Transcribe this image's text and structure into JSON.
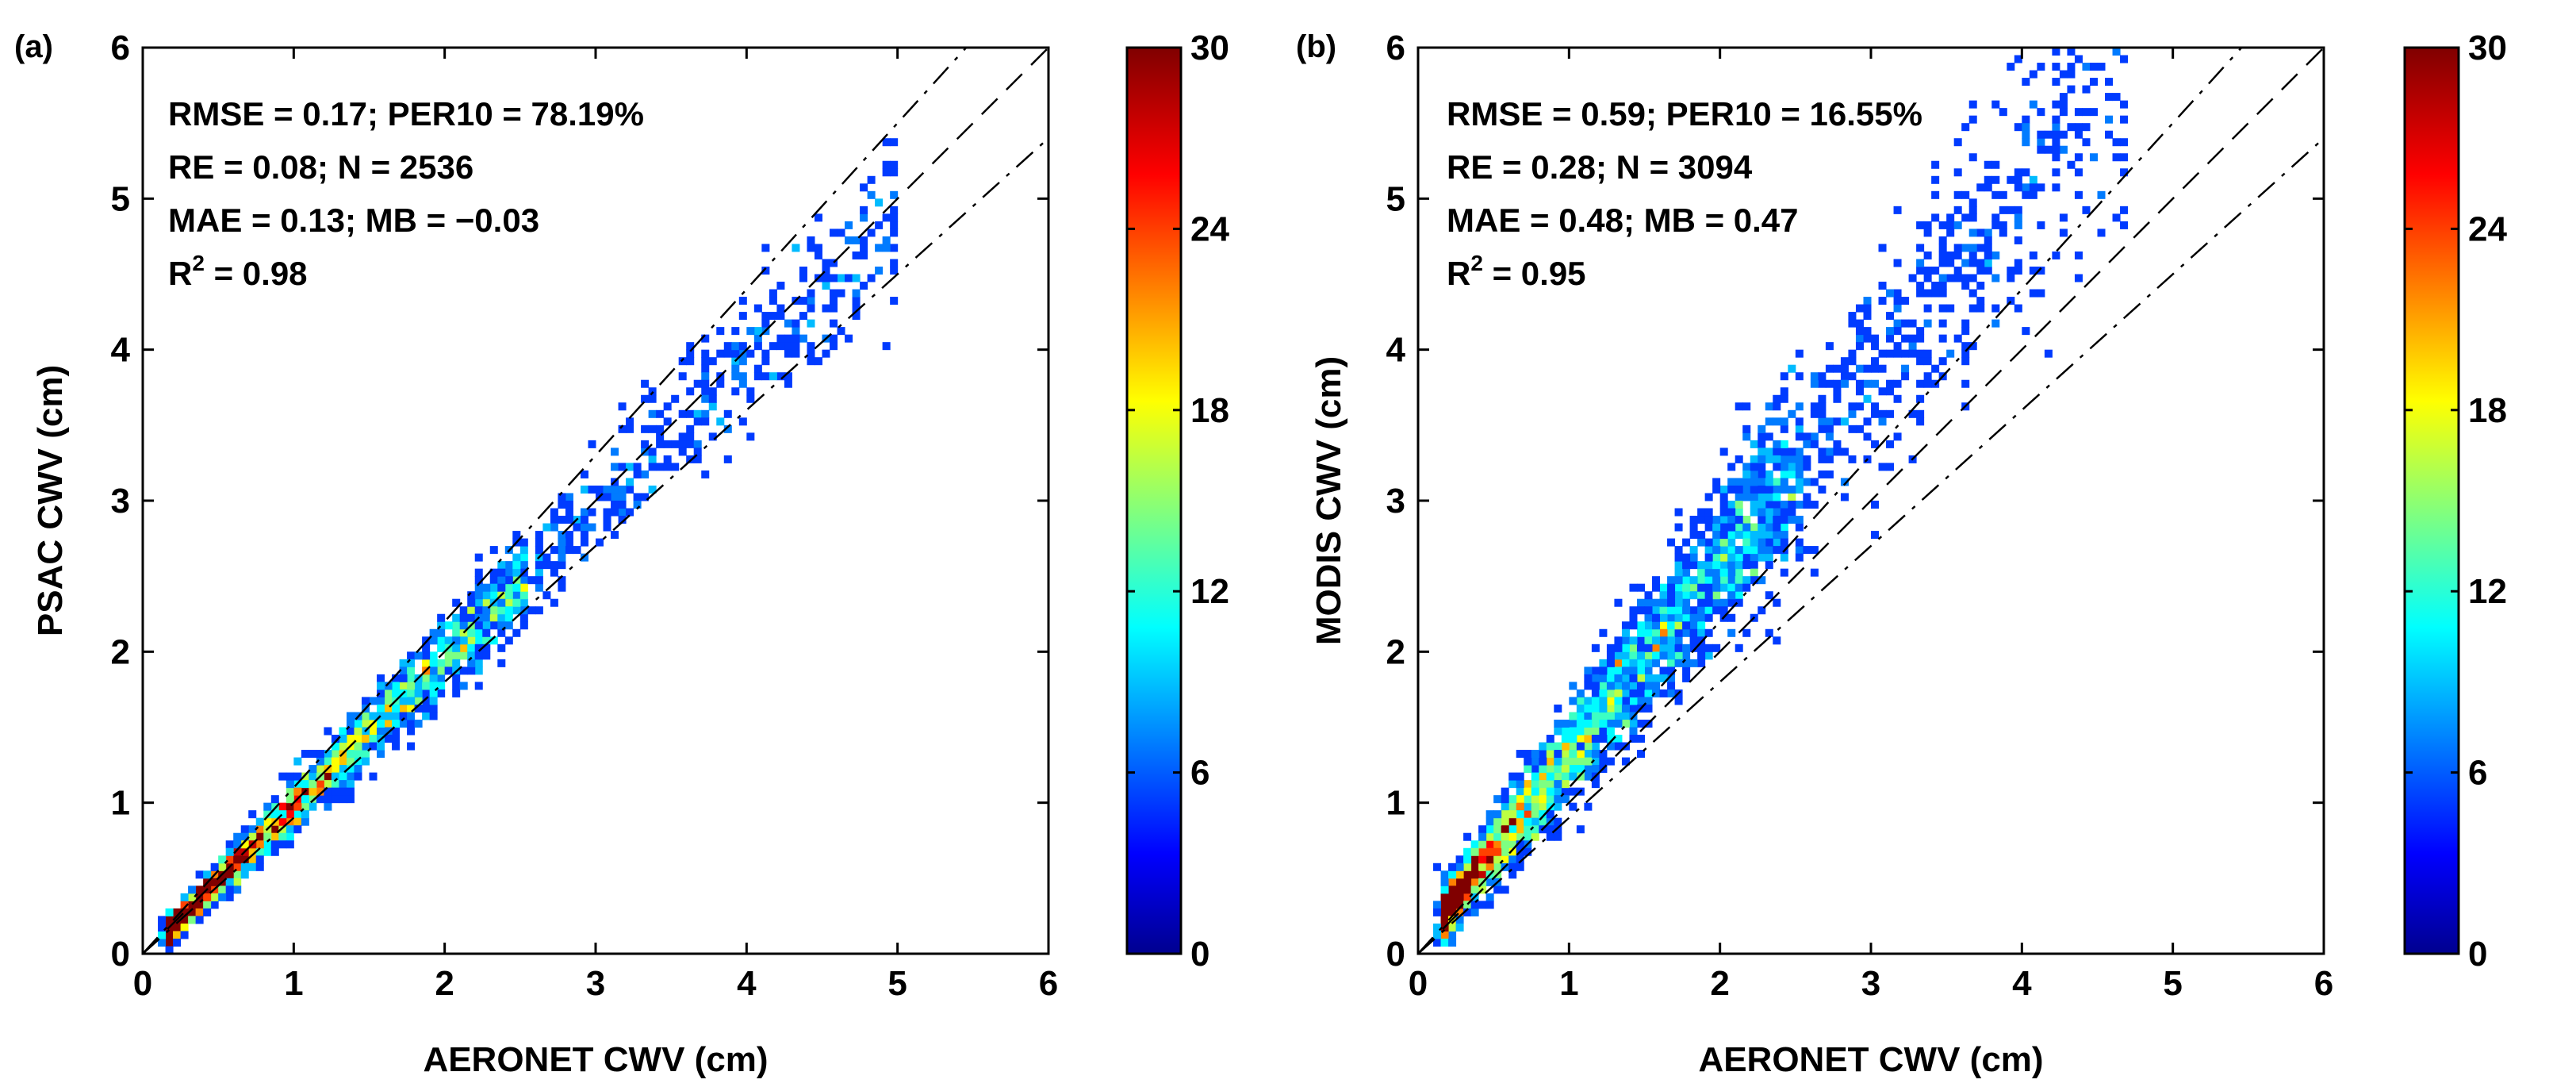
{
  "chart_data": [
    {
      "type": "scatter",
      "panel_label": "(a)",
      "xlabel": "AERONET CWV (cm)",
      "ylabel": "PSAC CWV (cm)",
      "xlim": [
        0,
        6
      ],
      "ylim": [
        0,
        6
      ],
      "xticks": [
        "0",
        "1",
        "2",
        "3",
        "4",
        "5",
        "6"
      ],
      "yticks": [
        "0",
        "1",
        "2",
        "3",
        "4",
        "5",
        "6"
      ],
      "stats": {
        "line1": "RMSE = 0.17; PER10 = 78.19%",
        "line2": "RE = 0.08; N = 2536",
        "line3": "MAE = 0.13; MB = −0.03",
        "line4_prefix": "R",
        "line4_sup": "2",
        "line4_value": " = 0.98"
      },
      "reference_lines": [
        "1:1 (dashed)",
        "+10% / -10% (dash-dot)"
      ],
      "density_model": {
        "slope": 0.985,
        "intercept": -0.01,
        "spread": 0.055,
        "x_max": 5.0,
        "n_points": 2536
      },
      "colorbar": {
        "min": 0,
        "max": 30,
        "ticks": [
          "0",
          "6",
          "12",
          "18",
          "24",
          "30"
        ],
        "colormap": "jet"
      }
    },
    {
      "type": "scatter",
      "panel_label": "(b)",
      "xlabel": "AERONET CWV (cm)",
      "ylabel": "MODIS CWV (cm)",
      "xlim": [
        0,
        6
      ],
      "ylim": [
        0,
        6
      ],
      "xticks": [
        "0",
        "1",
        "2",
        "3",
        "4",
        "5",
        "6"
      ],
      "yticks": [
        "0",
        "1",
        "2",
        "3",
        "4",
        "5",
        "6"
      ],
      "stats": {
        "line1": "RMSE = 0.59; PER10 = 16.55%",
        "line2": "RE = 0.28; N = 3094",
        "line3": "MAE = 0.48; MB = 0.47",
        "line4_prefix": "R",
        "line4_sup": "2",
        "line4_value": " = 0.95"
      },
      "reference_lines": [
        "1:1 (dashed)",
        "+10% / -10% (dash-dot)"
      ],
      "density_model": {
        "slope": 1.27,
        "intercept": 0.05,
        "spread": 0.11,
        "x_max": 4.7,
        "n_points": 3094
      },
      "colorbar": {
        "min": 0,
        "max": 30,
        "ticks": [
          "0",
          "6",
          "12",
          "18",
          "24",
          "30"
        ],
        "colormap": "jet"
      }
    }
  ]
}
